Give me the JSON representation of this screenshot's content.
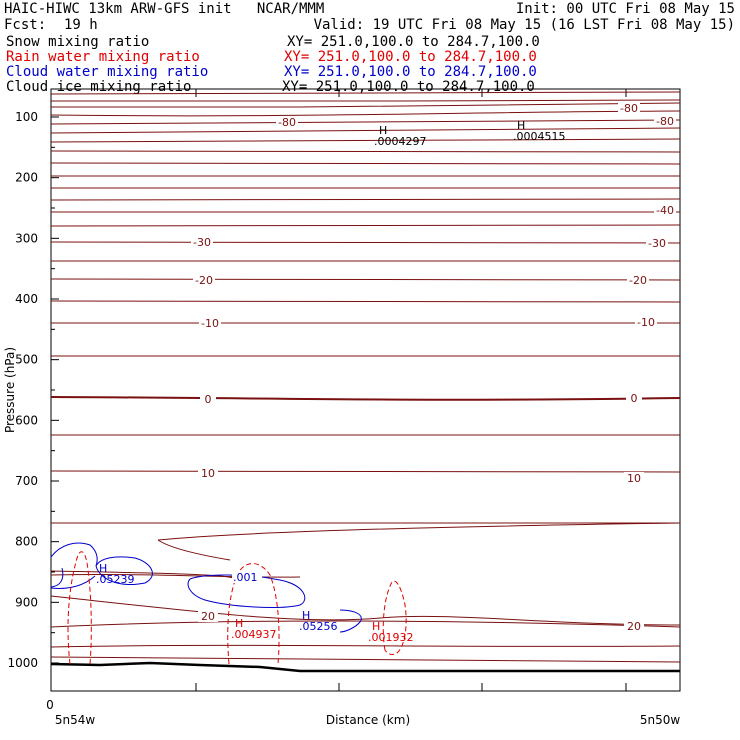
{
  "header": {
    "title": "HAIC-HIWC 13km ARW-GFS init   NCAR/MMM",
    "init": "Init: 00 UTC Fri 08 May 15",
    "fcst_label": "Fcst:",
    "fcst_value": "19 h",
    "valid": "Valid: 19 UTC Fri 08 May 15 (16 LST Fri 08 May 15)"
  },
  "fields": [
    {
      "name": "Snow mixing ratio",
      "xy": "XY= 251.0,100.0 to 284.7,100.0",
      "color": "#000000"
    },
    {
      "name": "Rain water mixing ratio",
      "xy": "XY= 251.0,100.0 to 284.7,100.0",
      "color": "#e00000"
    },
    {
      "name": "Cloud water mixing ratio",
      "xy": "XY= 251.0,100.0 to 284.7,100.0",
      "color": "#0000cc"
    },
    {
      "name": "Cloud ice mixing ratio",
      "xy": "XY= 251.0,100.0 to 284.7,100.0",
      "color": "#000000"
    }
  ],
  "chart_data": {
    "type": "line",
    "description_kind": "vertical cross-section contour plot",
    "xlabel": "Distance (km)",
    "ylabel": "Pressure (hPa)",
    "x_origin_label": "0",
    "x_start_label": "5n54w",
    "x_end_label": "5n50w",
    "y_ticks": [
      "100",
      "200",
      "300",
      "400",
      "500",
      "600",
      "700",
      "800",
      "900",
      "1000"
    ],
    "y_scale": "pressure, decreasing upward",
    "temperature_contour_labels": [
      "-80",
      "-80",
      "-80",
      "-40",
      "-30",
      "-30",
      "-20",
      "-20",
      "-10",
      "-10",
      "0",
      "0",
      "10",
      "10",
      "20",
      "20"
    ],
    "cloud_ice_maxima": [
      {
        "marker": "H",
        "value": ".0004297"
      },
      {
        "marker": "H",
        "value": ".0004515"
      }
    ],
    "cloud_water_maxima": [
      {
        "marker": "H",
        "value": ".05239"
      },
      {
        "marker": "",
        "value": ".001"
      },
      {
        "marker": "H",
        "value": ".05256"
      }
    ],
    "rain_water_maxima": [
      {
        "marker": "H",
        "value": ".004937"
      },
      {
        "marker": "H",
        "value": ".001932"
      }
    ],
    "colors": {
      "temperature": "#7a1010",
      "terrain": "#000000",
      "cloud_water": "#0000cc",
      "rain_water": "#e00000"
    }
  }
}
